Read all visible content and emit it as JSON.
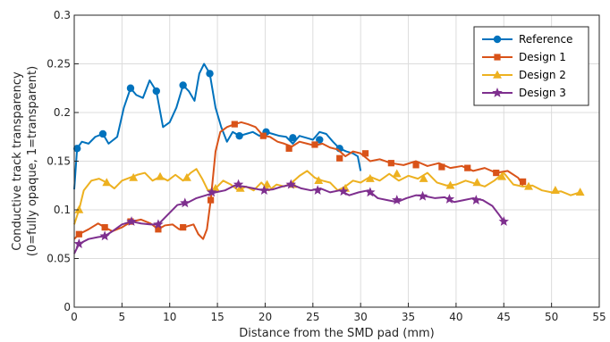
{
  "chart_data": {
    "type": "line",
    "xlabel": "Distance from the SMD pad (mm)",
    "ylabel": [
      "Conductive track transparency",
      "(0=fully opaque, 1=transparent)"
    ],
    "xlim": [
      0,
      55
    ],
    "ylim": [
      0,
      0.3
    ],
    "xticks": [
      0,
      5,
      10,
      15,
      20,
      25,
      30,
      35,
      40,
      45,
      50,
      55
    ],
    "yticks": [
      0,
      0.05,
      0.1,
      0.15,
      0.2,
      0.25,
      0.3
    ],
    "ytick_labels": [
      "0",
      "0.05",
      "0.1",
      "0.15",
      "0.2",
      "0.25",
      "0.3"
    ],
    "grid": true,
    "legend_position": "top-right",
    "series": [
      {
        "name": "Reference",
        "color": "#0072BD",
        "marker": "circle",
        "x": [
          0,
          0.3,
          0.8,
          1.5,
          2.2,
          3,
          3.6,
          4.5,
          5.2,
          5.9,
          6.5,
          7.2,
          7.9,
          8.6,
          9.3,
          10,
          10.7,
          11.4,
          12,
          12.6,
          13.1,
          13.6,
          14.2,
          14.8,
          15.4,
          16,
          16.6,
          17.3,
          18,
          18.7,
          19.4,
          20.1,
          20.8,
          21.5,
          22.2,
          22.9,
          23.6,
          24.3,
          25,
          25.7,
          26.4,
          27.1,
          27.8,
          28.5,
          29.2,
          29.7,
          30
        ],
        "y": [
          0.121,
          0.163,
          0.17,
          0.168,
          0.175,
          0.178,
          0.168,
          0.175,
          0.205,
          0.225,
          0.218,
          0.215,
          0.233,
          0.222,
          0.185,
          0.19,
          0.205,
          0.228,
          0.222,
          0.212,
          0.24,
          0.25,
          0.24,
          0.205,
          0.185,
          0.17,
          0.18,
          0.176,
          0.178,
          0.18,
          0.176,
          0.18,
          0.178,
          0.176,
          0.175,
          0.168,
          0.176,
          0.174,
          0.172,
          0.18,
          0.178,
          0.17,
          0.163,
          0.16,
          0.158,
          0.155,
          0.14
        ],
        "marker_x": [
          0.3,
          3,
          5.9,
          8.6,
          11.4,
          14.2,
          17.3,
          20.1,
          22.9,
          25.7,
          27.8
        ],
        "marker_y": [
          0.163,
          0.178,
          0.225,
          0.222,
          0.228,
          0.24,
          0.176,
          0.18,
          0.174,
          0.172,
          0.163
        ]
      },
      {
        "name": "Design 1",
        "color": "#D95319",
        "marker": "square",
        "x": [
          0,
          0.5,
          1.5,
          2.5,
          3.2,
          4,
          5,
          6,
          7,
          8,
          8.8,
          9.5,
          10.3,
          11,
          11.8,
          12.5,
          13,
          13.5,
          13.9,
          14.3,
          14.8,
          15.3,
          16,
          16.8,
          17.5,
          18.2,
          19,
          19.8,
          20.5,
          21.3,
          22,
          22.8,
          23.6,
          24.4,
          25.2,
          26,
          26.8,
          27.6,
          28.4,
          29.2,
          30,
          31,
          32,
          33.2,
          34.5,
          35.8,
          37,
          38.2,
          39.4,
          40.6,
          41.8,
          43,
          44.2,
          45.4,
          46.5,
          47
        ],
        "y": [
          0.07,
          0.075,
          0.08,
          0.086,
          0.082,
          0.078,
          0.082,
          0.088,
          0.09,
          0.086,
          0.08,
          0.084,
          0.085,
          0.08,
          0.083,
          0.085,
          0.075,
          0.07,
          0.08,
          0.11,
          0.16,
          0.18,
          0.185,
          0.188,
          0.19,
          0.188,
          0.185,
          0.176,
          0.175,
          0.17,
          0.168,
          0.165,
          0.17,
          0.168,
          0.166,
          0.168,
          0.164,
          0.162,
          0.155,
          0.16,
          0.158,
          0.15,
          0.152,
          0.148,
          0.146,
          0.15,
          0.145,
          0.148,
          0.143,
          0.145,
          0.14,
          0.143,
          0.138,
          0.14,
          0.133,
          0.125
        ],
        "marker_x": [
          0.5,
          3.2,
          5.9,
          8.8,
          11.4,
          14.3,
          16.8,
          19.8,
          22.5,
          25.2,
          27.8,
          30.5,
          33.2,
          35.8,
          38.5,
          41.2,
          44.2,
          47
        ],
        "marker_y": [
          0.075,
          0.082,
          0.088,
          0.08,
          0.082,
          0.11,
          0.188,
          0.176,
          0.163,
          0.167,
          0.153,
          0.158,
          0.148,
          0.146,
          0.144,
          0.143,
          0.138,
          0.129
        ]
      },
      {
        "name": "Design 2",
        "color": "#EDB120",
        "marker": "triangle",
        "x": [
          0,
          0.5,
          1,
          1.8,
          2.6,
          3.4,
          4.2,
          5,
          5.8,
          6.6,
          7.4,
          8.2,
          9,
          9.8,
          10.6,
          11.4,
          12.2,
          12.8,
          13.4,
          14,
          14.8,
          15.6,
          16.4,
          17.2,
          18,
          18.8,
          19.6,
          20.4,
          21.2,
          22,
          22.8,
          23.6,
          24.4,
          25.2,
          26,
          26.8,
          27.6,
          28.4,
          29.2,
          30,
          31,
          32,
          33,
          34,
          35,
          36,
          37,
          38,
          39,
          40,
          41,
          42,
          43,
          44,
          45,
          46,
          47,
          48,
          49,
          50,
          51,
          52,
          53
        ],
        "y": [
          0.085,
          0.1,
          0.12,
          0.13,
          0.132,
          0.128,
          0.122,
          0.13,
          0.133,
          0.136,
          0.138,
          0.13,
          0.134,
          0.13,
          0.136,
          0.13,
          0.138,
          0.142,
          0.132,
          0.12,
          0.122,
          0.13,
          0.126,
          0.12,
          0.124,
          0.12,
          0.128,
          0.12,
          0.126,
          0.124,
          0.128,
          0.135,
          0.14,
          0.133,
          0.13,
          0.128,
          0.12,
          0.124,
          0.13,
          0.128,
          0.134,
          0.13,
          0.137,
          0.13,
          0.135,
          0.132,
          0.138,
          0.128,
          0.125,
          0.126,
          0.13,
          0.127,
          0.124,
          0.13,
          0.138,
          0.126,
          0.124,
          0.125,
          0.12,
          0.118,
          0.119,
          0.115,
          0.118
        ],
        "marker_x": [
          0.5,
          3.4,
          6.2,
          9,
          11.8,
          14.8,
          17.4,
          20.2,
          22.9,
          25.6,
          28.4,
          31,
          33.8,
          36.6,
          39.4,
          42.2,
          44.8,
          47.6,
          50.4,
          53
        ],
        "marker_y": [
          0.1,
          0.128,
          0.133,
          0.134,
          0.133,
          0.122,
          0.122,
          0.126,
          0.126,
          0.13,
          0.122,
          0.132,
          0.137,
          0.132,
          0.125,
          0.128,
          0.134,
          0.124,
          0.12,
          0.118
        ]
      },
      {
        "name": "Design 3",
        "color": "#7E2F8E",
        "marker": "star",
        "x": [
          0,
          0.5,
          1.5,
          2.5,
          3.2,
          4,
          5,
          6,
          7,
          8,
          8.8,
          9.8,
          10.8,
          11.8,
          12.8,
          13.8,
          14.8,
          15.8,
          16.8,
          17.8,
          18.8,
          19.8,
          20.8,
          21.8,
          22.8,
          23.8,
          24.8,
          25.8,
          26.8,
          27.8,
          28.8,
          29.8,
          30.8,
          31.8,
          32.8,
          33.8,
          34.8,
          35.8,
          36.8,
          37.8,
          38.8,
          39.8,
          40.8,
          41.8,
          42.8,
          43.8,
          44.5,
          45
        ],
        "y": [
          0.055,
          0.065,
          0.07,
          0.072,
          0.073,
          0.078,
          0.085,
          0.088,
          0.086,
          0.085,
          0.085,
          0.095,
          0.105,
          0.107,
          0.112,
          0.115,
          0.118,
          0.12,
          0.125,
          0.124,
          0.122,
          0.12,
          0.121,
          0.124,
          0.126,
          0.122,
          0.12,
          0.122,
          0.118,
          0.12,
          0.115,
          0.118,
          0.12,
          0.112,
          0.11,
          0.108,
          0.112,
          0.115,
          0.114,
          0.112,
          0.113,
          0.108,
          0.11,
          0.112,
          0.11,
          0.104,
          0.095,
          0.088
        ],
        "marker_x": [
          0.5,
          3.2,
          6,
          8.8,
          11.6,
          14.4,
          17.2,
          19.9,
          22.7,
          25.5,
          28.2,
          31,
          33.8,
          36.5,
          39.3,
          42.1,
          45
        ],
        "marker_y": [
          0.065,
          0.073,
          0.088,
          0.085,
          0.107,
          0.118,
          0.126,
          0.12,
          0.126,
          0.12,
          0.119,
          0.118,
          0.11,
          0.114,
          0.111,
          0.11,
          0.088
        ]
      }
    ]
  }
}
